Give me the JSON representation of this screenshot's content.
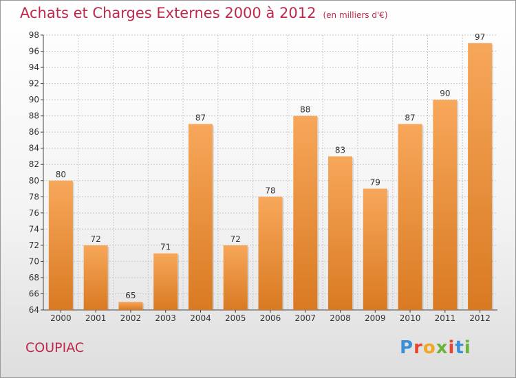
{
  "title": "Achats et Charges Externes 2000 à 2012",
  "unit_note": "(en milliers d'€)",
  "commune": "COUPIAC",
  "brand": {
    "text": "Proxiti",
    "letter_colors": [
      "#3a8fd8",
      "#e8442e",
      "#f2a623",
      "#6ab43e",
      "#e8442e",
      "#3a8fd8",
      "#6ab43e"
    ]
  },
  "colors": {
    "bar_top": "#f7a75a",
    "bar_bottom": "#d97a22",
    "title": "#c0284b",
    "axis": "#444444",
    "grid": "#c8c8c8"
  },
  "chart_data": {
    "type": "bar",
    "title": "Achats et Charges Externes 2000 à 2012",
    "subtitle": "(en milliers d'€)",
    "categories": [
      "2000",
      "2001",
      "2002",
      "2003",
      "2004",
      "2005",
      "2006",
      "2007",
      "2008",
      "2009",
      "2010",
      "2011",
      "2012"
    ],
    "values": [
      80,
      72,
      65,
      71,
      87,
      72,
      78,
      88,
      83,
      79,
      87,
      90,
      97
    ],
    "ylim": [
      64,
      98
    ],
    "yticks": [
      64,
      66,
      68,
      70,
      72,
      74,
      76,
      78,
      80,
      82,
      84,
      86,
      88,
      90,
      92,
      94,
      96,
      98
    ],
    "grid": true,
    "data_labels": true
  }
}
